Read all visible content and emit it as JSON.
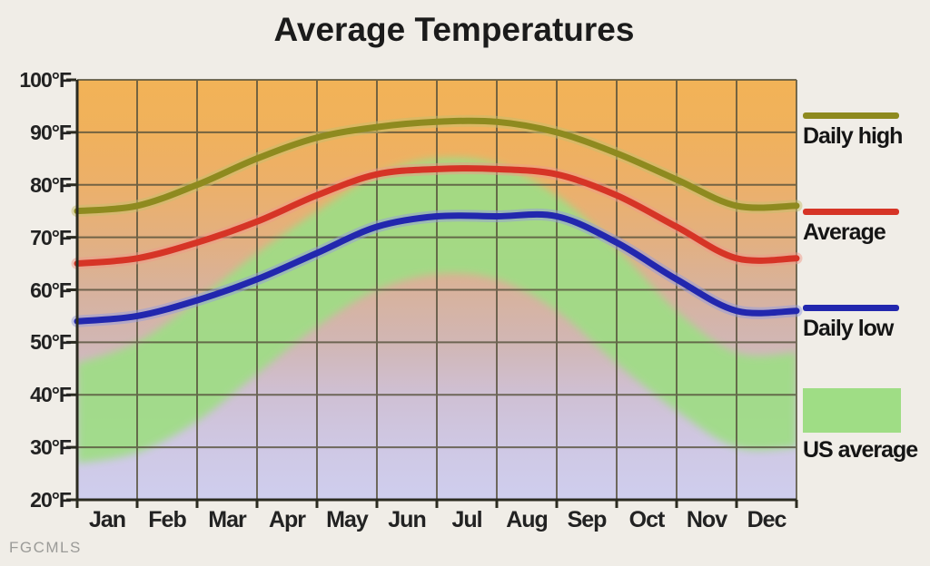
{
  "title": "Average Temperatures",
  "watermark": "FGCMLS",
  "chart_data": {
    "type": "line",
    "categories": [
      "Jan",
      "Feb",
      "Mar",
      "Apr",
      "May",
      "Jun",
      "Jul",
      "Aug",
      "Sep",
      "Oct",
      "Nov",
      "Dec"
    ],
    "ylim": [
      20,
      100
    ],
    "ytick_values": [
      100,
      90,
      80,
      70,
      60,
      50,
      40,
      30,
      20
    ],
    "ytick_labels": [
      "100°F",
      "90°F",
      "80°F",
      "70°F",
      "60°F",
      "50°F",
      "40°F",
      "30°F",
      "20°F"
    ],
    "grid": "on",
    "series": [
      {
        "name": "Daily high",
        "color": "#8e8a1f",
        "halo": "#c6c06c",
        "values": [
          75,
          76,
          80,
          85,
          89,
          91,
          92,
          92,
          90,
          86,
          81,
          76
        ]
      },
      {
        "name": "Average",
        "color": "#d63426",
        "halo": "#f0998a",
        "values": [
          65,
          66,
          69,
          73,
          78,
          82,
          83,
          83,
          82,
          78,
          72,
          66
        ]
      },
      {
        "name": "Daily low",
        "color": "#2227ae",
        "halo": "#949bdf",
        "values": [
          54,
          55,
          58,
          62,
          67,
          72,
          74,
          74,
          74,
          69,
          62,
          56
        ]
      }
    ],
    "band": {
      "name": "US average",
      "color": "#9fdd85",
      "high": [
        46,
        50,
        58,
        67,
        75,
        82,
        85,
        84,
        78,
        68,
        56,
        48
      ],
      "low": [
        27,
        29,
        35,
        44,
        53,
        60,
        63,
        62,
        56,
        46,
        37,
        30
      ]
    },
    "background_gradient": [
      "#f2b357",
      "#f0b15c",
      "#ecb06a",
      "#e3b07f",
      "#d8b29c",
      "#d1b6b4",
      "#cfc0d4",
      "#cfc8e4",
      "#cfceee"
    ],
    "grid_color": "#55503a",
    "axis_color": "#2b2b20",
    "legend_position": "right",
    "legend": {
      "items": [
        {
          "label": "Daily high",
          "swatch": "line",
          "color": "#8e8a1f"
        },
        {
          "label": "Average",
          "swatch": "line",
          "color": "#d63426"
        },
        {
          "label": "Daily low",
          "swatch": "line",
          "color": "#2227ae"
        },
        {
          "label": "US average",
          "swatch": "box",
          "color": "#9fdd85"
        }
      ]
    }
  }
}
